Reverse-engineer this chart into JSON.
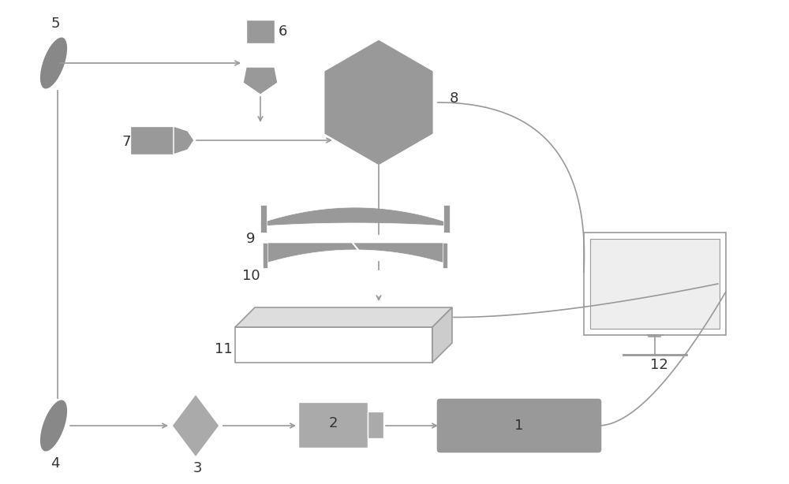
{
  "bg_color": "#ffffff",
  "gray_fill": "#999999",
  "gray_light": "#aaaaaa",
  "gray_dark": "#888888",
  "line_color": "#999999",
  "arrow_color": "#999999",
  "label_color": "#333333",
  "figsize": [
    10.0,
    6.14
  ],
  "dpi": 100
}
